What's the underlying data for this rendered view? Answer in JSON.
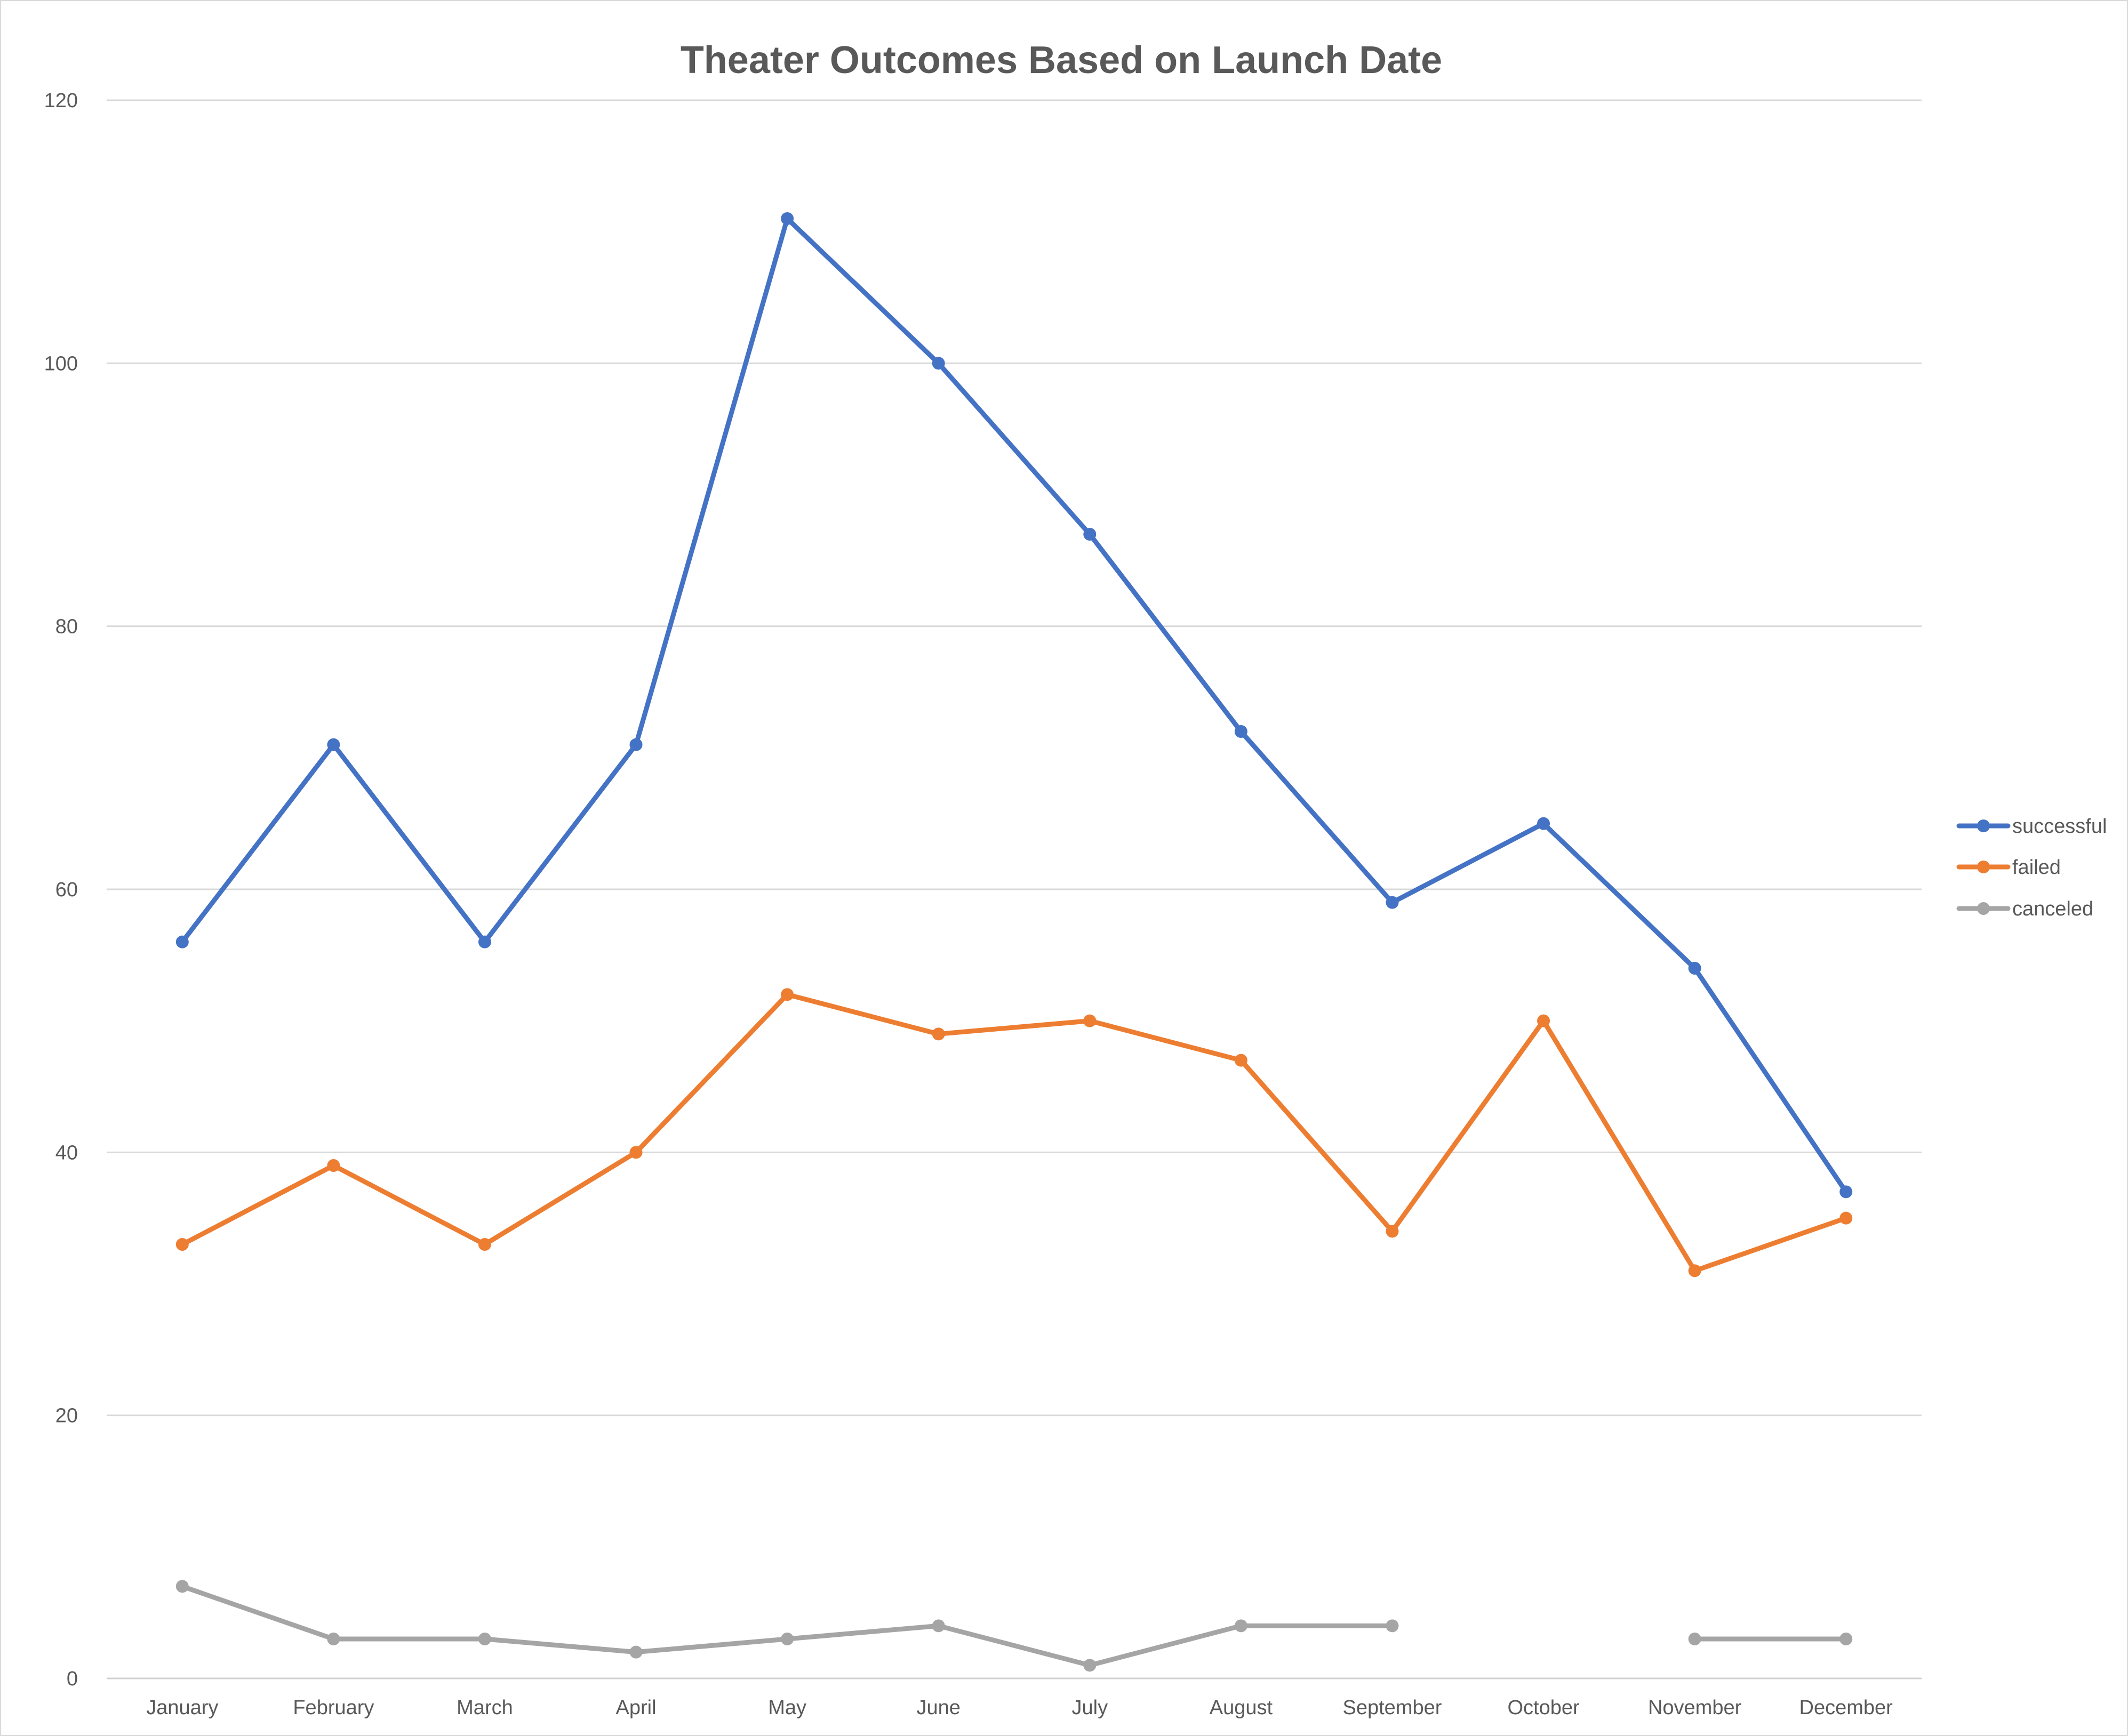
{
  "chart_data": {
    "type": "line",
    "title": "Theater Outcomes Based on Launch Date",
    "xlabel": "",
    "ylabel": "",
    "categories": [
      "January",
      "February",
      "March",
      "April",
      "May",
      "June",
      "July",
      "August",
      "September",
      "October",
      "November",
      "December"
    ],
    "ylim": [
      0,
      120
    ],
    "yticks": [
      0,
      20,
      40,
      60,
      80,
      100,
      120
    ],
    "grid": true,
    "legend_position": "right",
    "series": [
      {
        "name": "successful",
        "color": "#4472C4",
        "values": [
          56,
          71,
          56,
          71,
          111,
          100,
          87,
          72,
          59,
          65,
          54,
          37
        ]
      },
      {
        "name": "failed",
        "color": "#ED7D31",
        "values": [
          33,
          39,
          33,
          40,
          52,
          49,
          50,
          47,
          34,
          50,
          31,
          35
        ]
      },
      {
        "name": "canceled",
        "color": "#A5A5A5",
        "values": [
          7,
          3,
          3,
          2,
          3,
          4,
          1,
          4,
          4,
          null,
          3,
          3
        ]
      }
    ]
  }
}
